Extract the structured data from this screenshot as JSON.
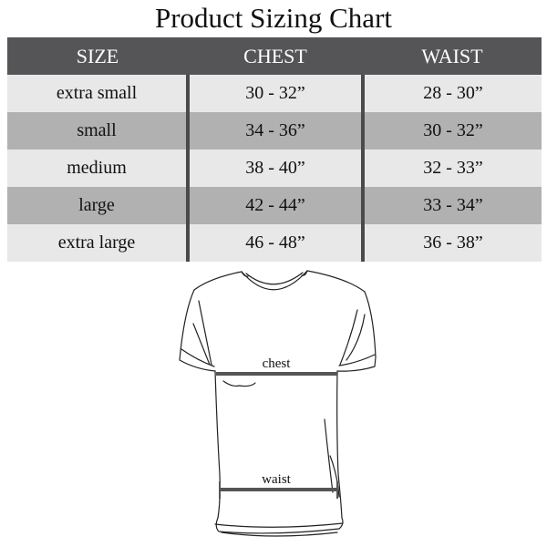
{
  "title": "Product Sizing Chart",
  "table": {
    "headers": [
      "SIZE",
      "CHEST",
      "WAIST"
    ],
    "rows": [
      {
        "size": "extra small",
        "chest": "30 - 32”",
        "waist": "28 - 30”"
      },
      {
        "size": "small",
        "chest": "34 - 36”",
        "waist": "30 - 32”"
      },
      {
        "size": "medium",
        "chest": "38 - 40”",
        "waist": "32 - 33”"
      },
      {
        "size": "large",
        "chest": "42 - 44”",
        "waist": "33 - 34”"
      },
      {
        "size": "extra large",
        "chest": "46 - 48”",
        "waist": "36 - 38”"
      }
    ]
  },
  "diagram": {
    "chest_label": "chest",
    "waist_label": "waist"
  },
  "colors": {
    "header": "#555558",
    "row_light": "#e8e8e8",
    "row_dark": "#b1b1b1"
  }
}
